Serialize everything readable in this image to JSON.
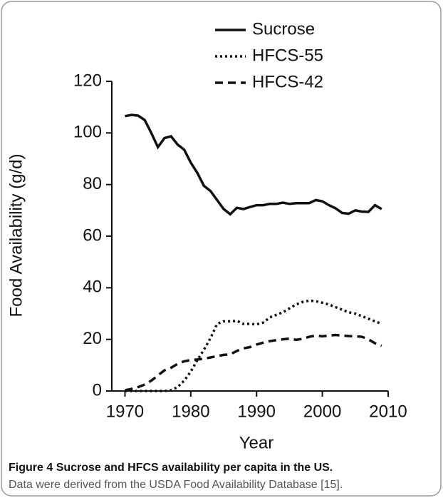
{
  "chart_data": {
    "type": "line",
    "x_label": "Year",
    "y_label": "Food Availability (g/d)",
    "x": [
      1970,
      1971,
      1972,
      1973,
      1974,
      1975,
      1976,
      1977,
      1978,
      1979,
      1980,
      1981,
      1982,
      1983,
      1984,
      1985,
      1986,
      1987,
      1988,
      1989,
      1990,
      1991,
      1992,
      1993,
      1994,
      1995,
      1996,
      1997,
      1998,
      1999,
      2000,
      2001,
      2002,
      2003,
      2004,
      2005,
      2006,
      2007,
      2008,
      2009
    ],
    "series": [
      {
        "name": "Sucrose",
        "color": "#111111",
        "linestyle": "solid",
        "values": [
          106.5,
          107,
          106.7,
          105,
          100,
          94.5,
          98,
          98.7,
          95.5,
          93.5,
          88.5,
          84.5,
          79.5,
          77.5,
          74,
          70.5,
          68.5,
          71,
          70.5,
          71.3,
          72,
          72,
          72.5,
          72.5,
          73,
          72.5,
          72.8,
          72.8,
          72.8,
          74,
          73.5,
          72,
          70.8,
          69,
          68.7,
          70,
          69.5,
          69.4,
          72,
          70.5
        ]
      },
      {
        "name": "HFCS-55",
        "color": "#111111",
        "linestyle": "dotted",
        "values": [
          0,
          0,
          0,
          0,
          0,
          0,
          0,
          0.3,
          1.5,
          4,
          7.5,
          12,
          16,
          20.5,
          26,
          27,
          27,
          27.2,
          26,
          26,
          25.8,
          26.5,
          28.5,
          29.5,
          30.5,
          32,
          33.5,
          34.5,
          35,
          34.8,
          34.2,
          33.5,
          32.5,
          31.5,
          30.5,
          30,
          29,
          28,
          27,
          26
        ]
      },
      {
        "name": "HFCS-42",
        "color": "#111111",
        "linestyle": "dashed",
        "values": [
          0.3,
          0.8,
          1.5,
          2.5,
          4,
          6,
          8,
          9,
          10.5,
          11.5,
          12,
          12.2,
          12.5,
          13,
          13.5,
          14,
          14.2,
          15.5,
          16.5,
          17,
          18,
          18.7,
          19.3,
          19.7,
          20,
          20.3,
          19.8,
          20.2,
          21,
          21.5,
          21.2,
          21.5,
          21.7,
          21.5,
          21.3,
          21.2,
          21,
          20,
          18.5,
          17.5
        ]
      }
    ],
    "xlim": [
      1968,
      2010
    ],
    "xticks": [
      1970,
      1980,
      1990,
      2000,
      2010
    ],
    "ylim": [
      0,
      120
    ],
    "yticks": [
      0,
      20,
      40,
      60,
      80,
      100,
      120
    ],
    "legend": "top"
  },
  "caption": {
    "label": "Figure 4",
    "title": "Sucrose and HFCS availability per capita in the US.",
    "text": "Data were derived from the USDA Food Availability Database [15]."
  }
}
